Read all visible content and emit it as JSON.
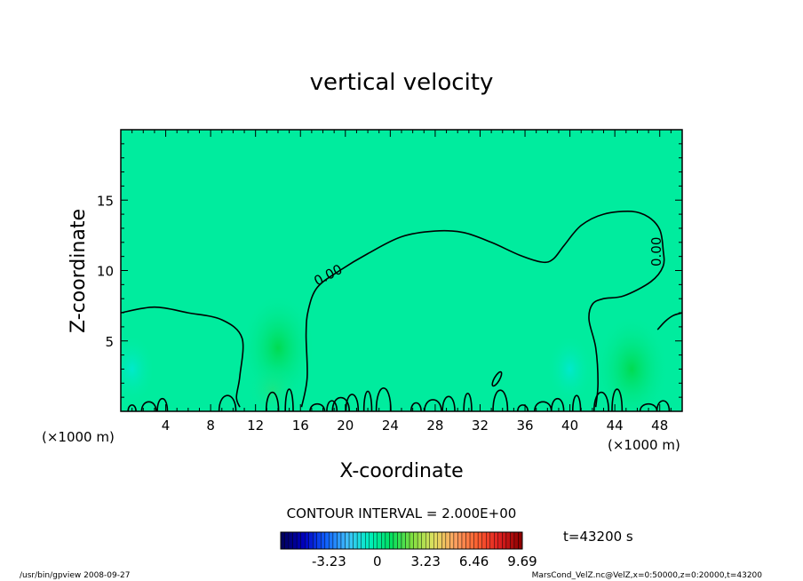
{
  "chart_data": {
    "type": "heatmap",
    "title": "vertical velocity",
    "xlabel": "X-coordinate",
    "ylabel": "Z-coordinate",
    "x_unit": "(×1000 m)",
    "y_unit": "(×1000 m)",
    "xlim": [
      0,
      50
    ],
    "ylim": [
      0,
      20
    ],
    "x_ticks": [
      4,
      8,
      12,
      16,
      20,
      24,
      28,
      32,
      36,
      40,
      44,
      48
    ],
    "y_ticks": [
      5,
      10,
      15
    ],
    "contour_interval_label": "CONTOUR INTERVAL = 2.000E+00",
    "contour_label": "0.00",
    "time_label": "t=43200 s",
    "colorbar": {
      "tick_labels": [
        "-3.23",
        "0",
        "3.23",
        "6.46",
        "9.69"
      ],
      "tick_values": [
        -3.23,
        0,
        3.23,
        6.46,
        9.69
      ],
      "range": [
        -6.46,
        9.69
      ],
      "colors": [
        "#000060",
        "#0000c0",
        "#1060ff",
        "#40c0ff",
        "#00f0c0",
        "#00e060",
        "#80e040",
        "#e0e060",
        "#ffa060",
        "#ff6030",
        "#e02020",
        "#900000"
      ]
    },
    "background_color": "#00ec9e",
    "footer_left": "/usr/bin/gpview   2008-09-27",
    "footer_right": "MarsCond_VelZ.nc@VelZ,x=0:50000,z=0:20000,t=43200",
    "zero_contour_main": [
      [
        0,
        7.0
      ],
      [
        3,
        7.4
      ],
      [
        6,
        7.0
      ],
      [
        9,
        6.5
      ],
      [
        10.8,
        5.2
      ],
      [
        10.6,
        2.5
      ],
      [
        10.3,
        1.0
      ],
      [
        10.6,
        0.3
      ]
    ],
    "zero_contour_upper": [
      [
        16.1,
        0.3
      ],
      [
        16.6,
        2.4
      ],
      [
        16.5,
        5.5
      ],
      [
        16.7,
        7.2
      ],
      [
        17.5,
        8.8
      ],
      [
        19.5,
        10.0
      ],
      [
        22,
        11.2
      ],
      [
        25,
        12.4
      ],
      [
        28,
        12.8
      ],
      [
        30.5,
        12.7
      ],
      [
        33,
        12.0
      ],
      [
        35.5,
        11.1
      ],
      [
        37.5,
        10.6
      ],
      [
        38.5,
        10.8
      ],
      [
        39.5,
        11.8
      ],
      [
        41,
        13.2
      ],
      [
        43,
        14.0
      ],
      [
        45.5,
        14.2
      ],
      [
        47,
        13.8
      ],
      [
        48,
        12.9
      ],
      [
        48.3,
        11.5
      ],
      [
        48.3,
        10.3
      ],
      [
        47.2,
        9.2
      ],
      [
        44.8,
        8.2
      ],
      [
        43,
        8.0
      ],
      [
        42,
        7.6
      ],
      [
        41.7,
        6.5
      ],
      [
        42.3,
        4.5
      ],
      [
        42.5,
        2.0
      ],
      [
        42.3,
        0.3
      ]
    ],
    "zero_contour_right": [
      [
        47.8,
        5.8
      ],
      [
        48.5,
        6.4
      ],
      [
        49.2,
        6.8
      ],
      [
        50,
        7.0
      ]
    ],
    "green_blobs": [
      {
        "x": 14,
        "z": 4.5,
        "strength": "strong"
      },
      {
        "x": 45.5,
        "z": 3.0,
        "strength": "strong"
      },
      {
        "x": 13.5,
        "z": 1.5,
        "strength": "weak"
      }
    ],
    "blue_blobs": [
      {
        "x": 40,
        "z": 3.0
      },
      {
        "x": 1,
        "z": 3.0
      }
    ]
  }
}
